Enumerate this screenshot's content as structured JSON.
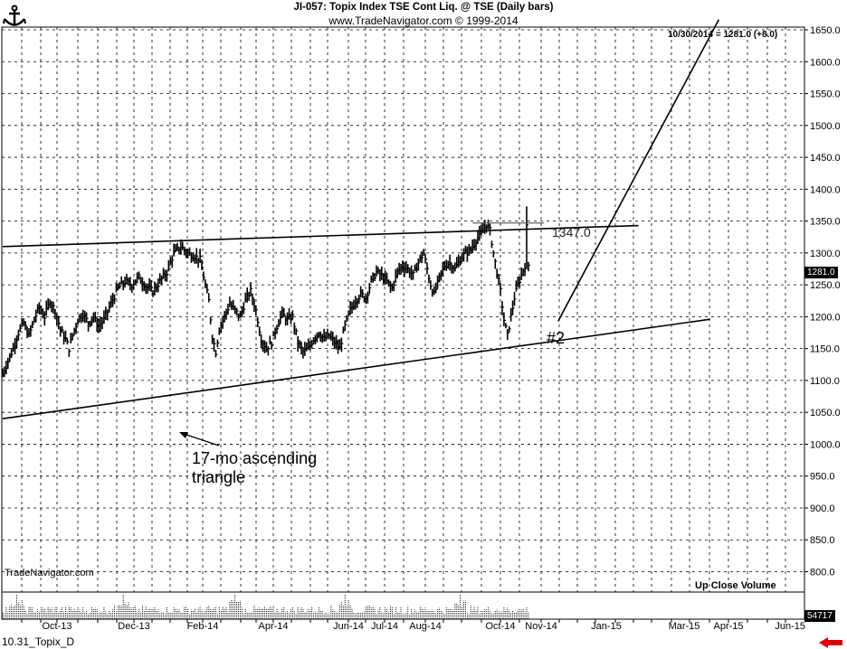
{
  "header": {
    "title": "JI-057: Topix Index TSE Cont Liq. @ TSE (Daily bars)",
    "subtitle": "www.TradeNavigator.com © 1999-2014"
  },
  "last_bar_label": "10/30/2014 = 1281.0 (+8.0)",
  "watermark": "TradeNavigator.com",
  "volume_header": "Up Close    Volume",
  "footer_label": "10.31_Topix_D",
  "price_box": "1281.0",
  "volume_box": "54717",
  "annotations": {
    "triangle": "17-mo ascending triangle",
    "point2": "#2",
    "level": "1347.0"
  },
  "colors": {
    "background": "#ffffff",
    "bars": "#000000",
    "grid": "#000000",
    "arrow": "#e00000"
  },
  "chart_data": {
    "type": "ohlc",
    "y_ticks": [
      800,
      850,
      900,
      950,
      1000,
      1050,
      1100,
      1150,
      1200,
      1250,
      1300,
      1350,
      1400,
      1450,
      1500,
      1550,
      1600,
      1650
    ],
    "y_tick_labels": [
      "800.0",
      "850.0",
      "900.0",
      "950.0",
      "1000.0",
      "1050.0",
      "1100.0",
      "1150.0",
      "1200.0",
      "1250.0",
      "1300.0",
      "1350.0",
      "1400.0",
      "1450.0",
      "1500.0",
      "1550.0",
      "1600.0",
      "1650.0"
    ],
    "ylim": [
      775,
      1680
    ],
    "x_labels": [
      "Oct-13",
      "Dec-13",
      "Feb-14",
      "Apr-14",
      "Jun-14",
      "Jul-14",
      "Aug-14",
      "Oct-14",
      "Nov-14",
      "Jan-15",
      "Mar-15",
      "Apr-15",
      "Jun-15"
    ],
    "grid": true,
    "price_path": [
      [
        0,
        1110
      ],
      [
        3,
        1130
      ],
      [
        6,
        1150
      ],
      [
        9,
        1175
      ],
      [
        12,
        1190
      ],
      [
        15,
        1170
      ],
      [
        18,
        1195
      ],
      [
        21,
        1215
      ],
      [
        24,
        1200
      ],
      [
        27,
        1225
      ],
      [
        30,
        1210
      ],
      [
        33,
        1180
      ],
      [
        36,
        1165
      ],
      [
        38,
        1150
      ],
      [
        40,
        1170
      ],
      [
        43,
        1195
      ],
      [
        46,
        1205
      ],
      [
        49,
        1190
      ],
      [
        52,
        1200
      ],
      [
        55,
        1185
      ],
      [
        58,
        1195
      ],
      [
        62,
        1220
      ],
      [
        66,
        1245
      ],
      [
        70,
        1255
      ],
      [
        74,
        1250
      ],
      [
        78,
        1262
      ],
      [
        82,
        1248
      ],
      [
        86,
        1240
      ],
      [
        90,
        1255
      ],
      [
        94,
        1270
      ],
      [
        98,
        1300
      ],
      [
        102,
        1310
      ],
      [
        106,
        1300
      ],
      [
        110,
        1295
      ],
      [
        113,
        1290
      ],
      [
        116,
        1250
      ],
      [
        118,
        1225
      ],
      [
        120,
        1170
      ],
      [
        122,
        1145
      ],
      [
        124,
        1180
      ],
      [
        127,
        1200
      ],
      [
        130,
        1220
      ],
      [
        133,
        1210
      ],
      [
        136,
        1200
      ],
      [
        139,
        1225
      ],
      [
        142,
        1240
      ],
      [
        145,
        1210
      ],
      [
        148,
        1165
      ],
      [
        151,
        1150
      ],
      [
        154,
        1160
      ],
      [
        157,
        1185
      ],
      [
        160,
        1205
      ],
      [
        163,
        1195
      ],
      [
        166,
        1200
      ],
      [
        169,
        1160
      ],
      [
        172,
        1145
      ],
      [
        175,
        1150
      ],
      [
        178,
        1165
      ],
      [
        181,
        1175
      ],
      [
        184,
        1165
      ],
      [
        187,
        1170
      ],
      [
        190,
        1160
      ],
      [
        193,
        1150
      ],
      [
        196,
        1185
      ],
      [
        199,
        1210
      ],
      [
        202,
        1225
      ],
      [
        205,
        1235
      ],
      [
        208,
        1230
      ],
      [
        211,
        1255
      ],
      [
        214,
        1270
      ],
      [
        217,
        1265
      ],
      [
        220,
        1255
      ],
      [
        223,
        1245
      ],
      [
        226,
        1270
      ],
      [
        229,
        1280
      ],
      [
        232,
        1275
      ],
      [
        235,
        1265
      ],
      [
        238,
        1285
      ],
      [
        241,
        1300
      ],
      [
        243,
        1275
      ],
      [
        245,
        1250
      ],
      [
        247,
        1235
      ],
      [
        250,
        1260
      ],
      [
        253,
        1280
      ],
      [
        256,
        1285
      ],
      [
        259,
        1275
      ],
      [
        262,
        1290
      ],
      [
        265,
        1300
      ],
      [
        268,
        1305
      ],
      [
        271,
        1320
      ],
      [
        274,
        1330
      ],
      [
        277,
        1345
      ],
      [
        279,
        1335
      ],
      [
        281,
        1300
      ],
      [
        283,
        1270
      ],
      [
        285,
        1240
      ],
      [
        287,
        1195
      ],
      [
        289,
        1170
      ],
      [
        291,
        1200
      ],
      [
        293,
        1230
      ],
      [
        295,
        1250
      ],
      [
        297,
        1265
      ],
      [
        299,
        1280
      ],
      [
        300,
        1340
      ],
      [
        301,
        1281
      ]
    ],
    "bar_index_range": [
      0,
      301
    ],
    "volume_spikes": [
      {
        "bar": 8,
        "value": 54717
      },
      {
        "bar": 69,
        "value": 54717
      },
      {
        "bar": 133,
        "value": 54717
      },
      {
        "bar": 196,
        "value": 54717
      },
      {
        "bar": 262,
        "value": 54717
      }
    ],
    "trendlines": [
      {
        "name": "upper",
        "from": [
          0,
          1310
        ],
        "to": [
          364,
          1343
        ]
      },
      {
        "name": "lower",
        "from": [
          0,
          1040
        ],
        "to": [
          405,
          1196
        ]
      },
      {
        "name": "projection",
        "from": [
          318,
          1193
        ],
        "to": [
          410,
          1666
        ]
      },
      {
        "name": "level",
        "from": [
          269,
          1347
        ],
        "to": [
          310,
          1347
        ]
      }
    ]
  }
}
